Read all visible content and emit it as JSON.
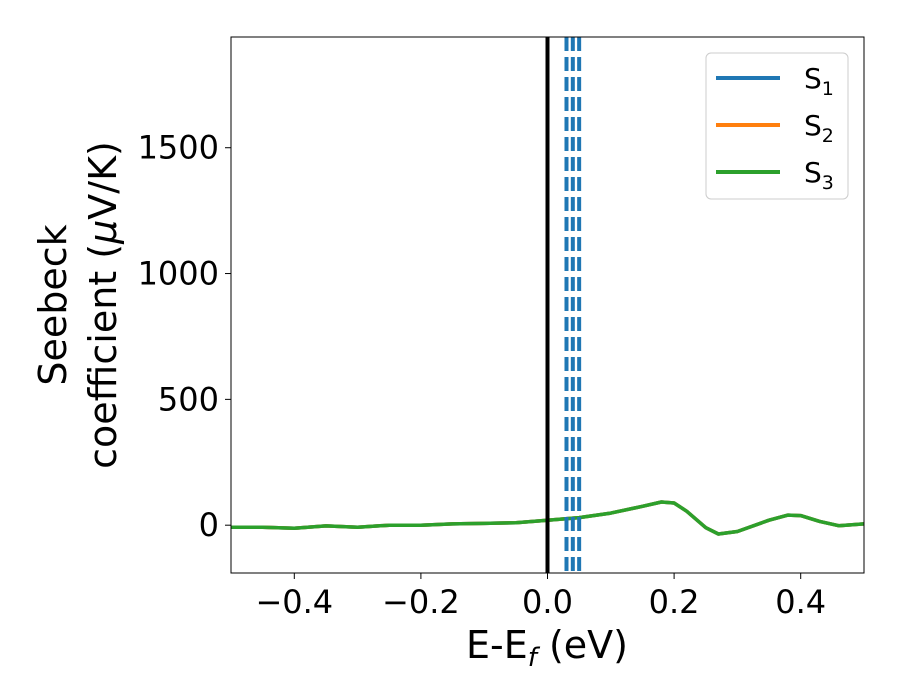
{
  "chart_data": {
    "type": "line",
    "title": "",
    "xlabel": "E-E",
    "xlabel_sub": "f",
    "xlabel_unit": " (eV)",
    "ylabel_line1": "Seebeck",
    "ylabel_line2_prefix": "coefficient  (",
    "ylabel_mu": "μ",
    "ylabel_line2_suffix": "V/K)",
    "xlim": [
      -0.5,
      0.5
    ],
    "ylim": [
      -190,
      1940
    ],
    "xticks": [
      -0.4,
      -0.2,
      0.0,
      0.2,
      0.4
    ],
    "xtick_labels": [
      "−0.4",
      "−0.2",
      "0.0",
      "0.2",
      "0.4"
    ],
    "yticks": [
      0,
      500,
      1000,
      1500
    ],
    "ytick_labels": [
      "0",
      "500",
      "1000",
      "1500"
    ],
    "grid": false,
    "legend_position": "top-right",
    "series": [
      {
        "name": "S",
        "sub": "1",
        "color": "#1f77b4",
        "x": [
          -0.5,
          -0.45,
          -0.4,
          -0.35,
          -0.3,
          -0.25,
          -0.2,
          -0.15,
          -0.1,
          -0.05,
          0.0,
          0.05,
          0.1,
          0.15,
          0.18,
          0.2,
          0.22,
          0.25,
          0.27,
          0.3,
          0.35,
          0.38,
          0.4,
          0.43,
          0.46,
          0.5
        ],
        "y": [
          -8,
          -8,
          -12,
          -3,
          -8,
          0,
          0,
          5,
          7,
          10,
          20,
          30,
          48,
          75,
          92,
          88,
          55,
          -10,
          -35,
          -25,
          20,
          40,
          38,
          15,
          -2,
          5
        ]
      },
      {
        "name": "S",
        "sub": "2",
        "color": "#ff7f0e",
        "x": [
          -0.5,
          -0.45,
          -0.4,
          -0.35,
          -0.3,
          -0.25,
          -0.2,
          -0.15,
          -0.1,
          -0.05,
          0.0,
          0.05,
          0.1,
          0.15,
          0.18,
          0.2,
          0.22,
          0.25,
          0.27,
          0.3,
          0.35,
          0.38,
          0.4,
          0.43,
          0.46,
          0.5
        ],
        "y": [
          -8,
          -8,
          -12,
          -3,
          -8,
          0,
          0,
          5,
          7,
          10,
          20,
          30,
          48,
          75,
          92,
          88,
          55,
          -10,
          -35,
          -25,
          20,
          40,
          38,
          15,
          -2,
          5
        ]
      },
      {
        "name": "S",
        "sub": "3",
        "color": "#2ca02c",
        "x": [
          -0.5,
          -0.45,
          -0.4,
          -0.35,
          -0.3,
          -0.25,
          -0.2,
          -0.15,
          -0.1,
          -0.05,
          0.0,
          0.05,
          0.1,
          0.15,
          0.18,
          0.2,
          0.22,
          0.25,
          0.27,
          0.3,
          0.35,
          0.38,
          0.4,
          0.43,
          0.46,
          0.5
        ],
        "y": [
          -8,
          -8,
          -12,
          -3,
          -8,
          0,
          0,
          5,
          7,
          10,
          20,
          30,
          48,
          75,
          92,
          88,
          55,
          -10,
          -35,
          -25,
          20,
          40,
          38,
          15,
          -2,
          5
        ]
      }
    ],
    "vertical_lines": [
      {
        "x": 0.0,
        "color": "#000000",
        "style": "solid"
      },
      {
        "x": 0.03,
        "color": "#1f77b4",
        "style": "dashed"
      },
      {
        "x": 0.04,
        "color": "#1f77b4",
        "style": "dashed"
      },
      {
        "x": 0.05,
        "color": "#1f77b4",
        "style": "dashed"
      }
    ]
  }
}
